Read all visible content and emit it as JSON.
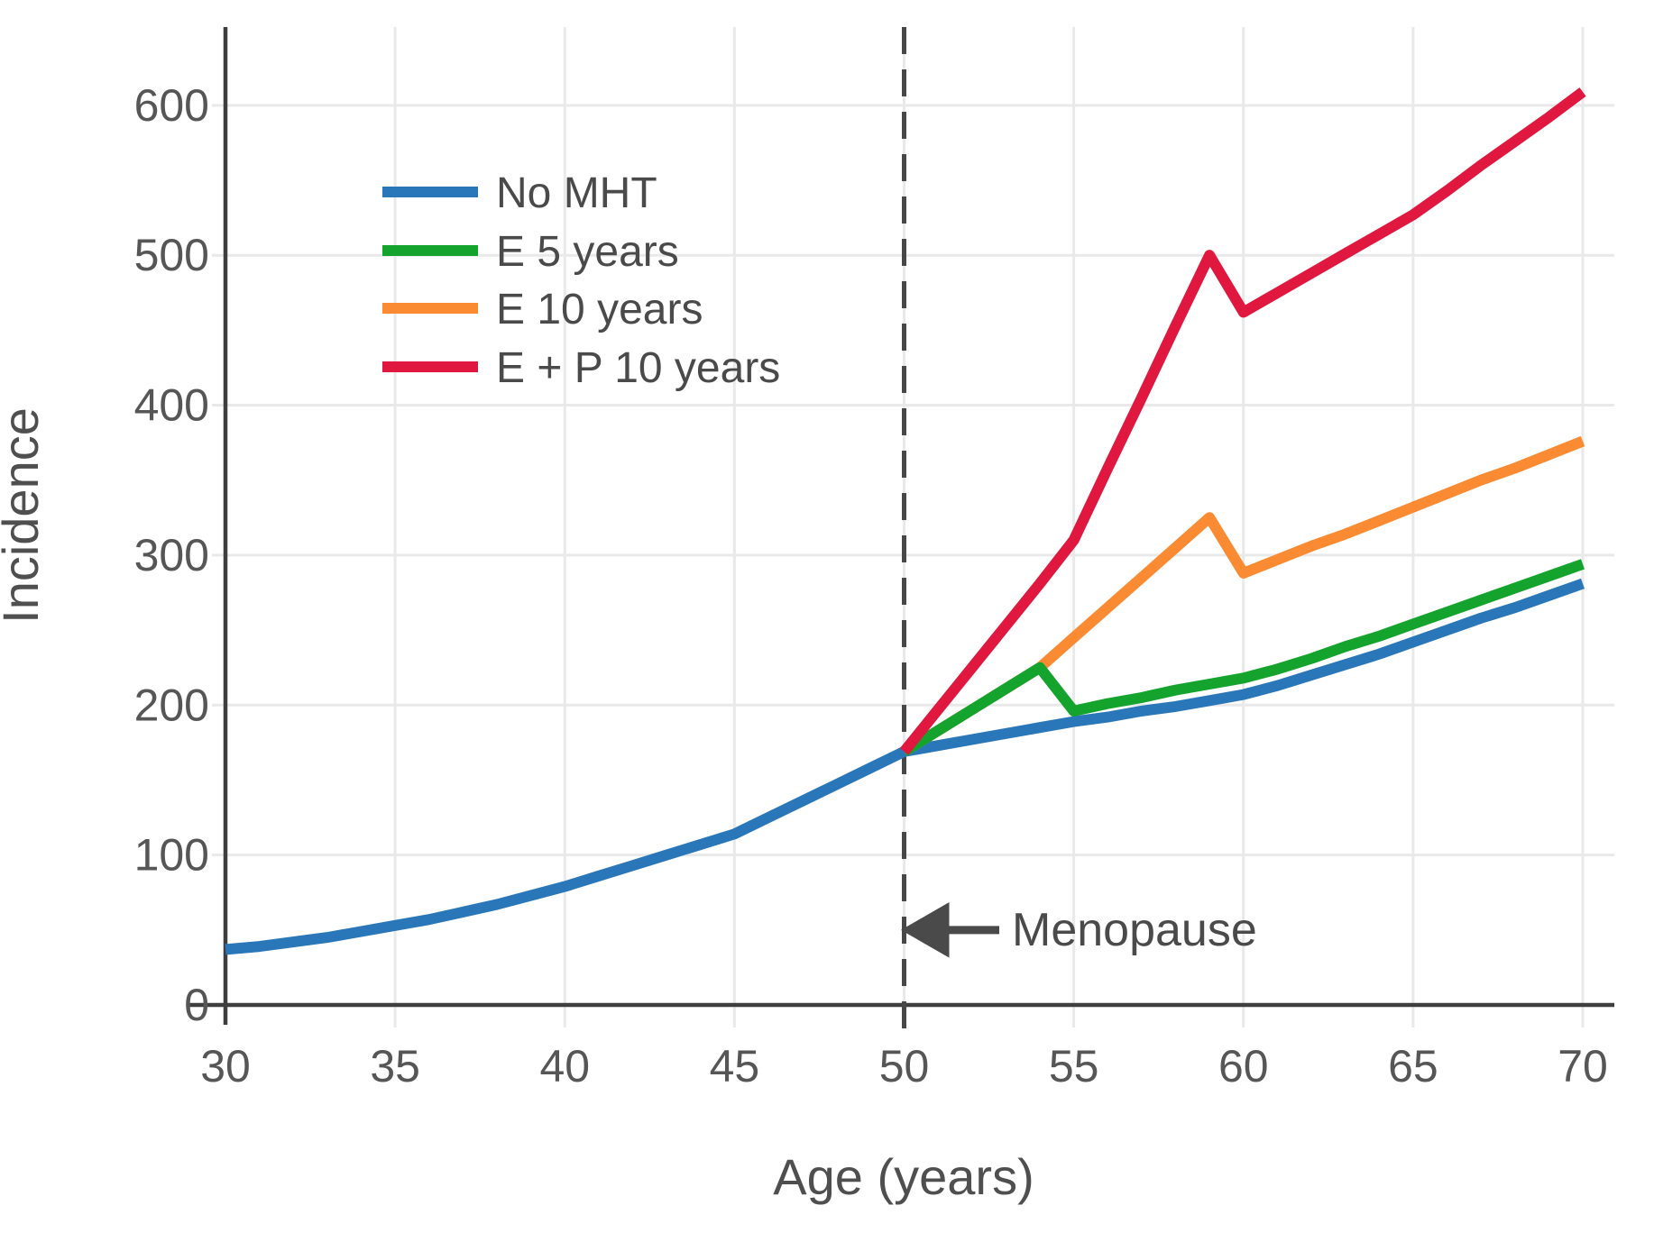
{
  "chart_data": {
    "type": "line",
    "title": "",
    "xlabel": "Age (years)",
    "ylabel": "Incidence",
    "x_ticks": [
      30,
      35,
      40,
      45,
      50,
      55,
      60,
      65,
      70
    ],
    "y_ticks": [
      0,
      100,
      200,
      300,
      400,
      500,
      600
    ],
    "xlim": [
      30,
      70
    ],
    "ylim": [
      0,
      650
    ],
    "grid": true,
    "legend_position": "upper-left-inside",
    "series": [
      {
        "name": "No MHT",
        "color": "#2977b8",
        "points": [
          [
            30,
            37
          ],
          [
            31,
            39
          ],
          [
            32,
            42
          ],
          [
            33,
            45
          ],
          [
            34,
            49
          ],
          [
            35,
            53
          ],
          [
            36,
            57
          ],
          [
            37,
            62
          ],
          [
            38,
            67
          ],
          [
            39,
            73
          ],
          [
            40,
            79
          ],
          [
            41,
            86
          ],
          [
            42,
            93
          ],
          [
            43,
            100
          ],
          [
            44,
            107
          ],
          [
            45,
            114
          ],
          [
            46,
            125
          ],
          [
            47,
            136
          ],
          [
            48,
            147
          ],
          [
            49,
            158
          ],
          [
            50,
            169
          ],
          [
            51,
            173
          ],
          [
            52,
            177
          ],
          [
            53,
            181
          ],
          [
            54,
            185
          ],
          [
            55,
            189
          ],
          [
            56,
            192
          ],
          [
            57,
            196
          ],
          [
            58,
            199
          ],
          [
            59,
            203
          ],
          [
            60,
            207
          ],
          [
            61,
            213
          ],
          [
            62,
            220
          ],
          [
            63,
            227
          ],
          [
            64,
            234
          ],
          [
            65,
            242
          ],
          [
            66,
            250
          ],
          [
            67,
            258
          ],
          [
            68,
            265
          ],
          [
            69,
            273
          ],
          [
            70,
            281
          ]
        ]
      },
      {
        "name": "E 5 years",
        "color": "#14a32c",
        "points": [
          [
            50,
            169
          ],
          [
            51,
            183
          ],
          [
            52,
            197
          ],
          [
            53,
            211
          ],
          [
            54,
            225
          ],
          [
            55,
            196
          ],
          [
            56,
            201
          ],
          [
            57,
            205
          ],
          [
            58,
            210
          ],
          [
            59,
            214
          ],
          [
            60,
            218
          ],
          [
            61,
            224
          ],
          [
            62,
            231
          ],
          [
            63,
            239
          ],
          [
            64,
            246
          ],
          [
            65,
            254
          ],
          [
            66,
            262
          ],
          [
            67,
            270
          ],
          [
            68,
            278
          ],
          [
            69,
            286
          ],
          [
            70,
            294
          ]
        ]
      },
      {
        "name": "E 10 years",
        "color": "#fa8b32",
        "points": [
          [
            50,
            169
          ],
          [
            51,
            183
          ],
          [
            52,
            197
          ],
          [
            53,
            211
          ],
          [
            54,
            225
          ],
          [
            55,
            245
          ],
          [
            56,
            265
          ],
          [
            57,
            285
          ],
          [
            58,
            305
          ],
          [
            59,
            325
          ],
          [
            60,
            288
          ],
          [
            61,
            297
          ],
          [
            62,
            306
          ],
          [
            63,
            314
          ],
          [
            64,
            323
          ],
          [
            65,
            332
          ],
          [
            66,
            341
          ],
          [
            67,
            350
          ],
          [
            68,
            358
          ],
          [
            69,
            367
          ],
          [
            70,
            376
          ]
        ]
      },
      {
        "name": "E + P 10 years",
        "color": "#e0173f",
        "points": [
          [
            50,
            169
          ],
          [
            51,
            197
          ],
          [
            52,
            225
          ],
          [
            53,
            253
          ],
          [
            54,
            281
          ],
          [
            55,
            310
          ],
          [
            56,
            358
          ],
          [
            57,
            405
          ],
          [
            58,
            453
          ],
          [
            59,
            500
          ],
          [
            60,
            462
          ],
          [
            61,
            475
          ],
          [
            62,
            488
          ],
          [
            63,
            501
          ],
          [
            64,
            514
          ],
          [
            65,
            527
          ],
          [
            66,
            543
          ],
          [
            67,
            560
          ],
          [
            68,
            576
          ],
          [
            69,
            592
          ],
          [
            70,
            609
          ]
        ]
      }
    ],
    "annotations": {
      "menopause_line": {
        "type": "vline",
        "x": 50,
        "style": "dashed",
        "color": "#474747"
      },
      "menopause_label": {
        "type": "arrow-label",
        "text": "Menopause",
        "x": 50,
        "y": 50,
        "arrow_direction": "left",
        "color": "#4a4a4a"
      }
    }
  },
  "colors": {
    "background": "#ffffff",
    "grid": "#e9e9e9",
    "axis": "#3e3e3e",
    "tick_text": "#565656",
    "axis_title_text": "#4f4f4f",
    "annotation": "#4a4a4a"
  }
}
